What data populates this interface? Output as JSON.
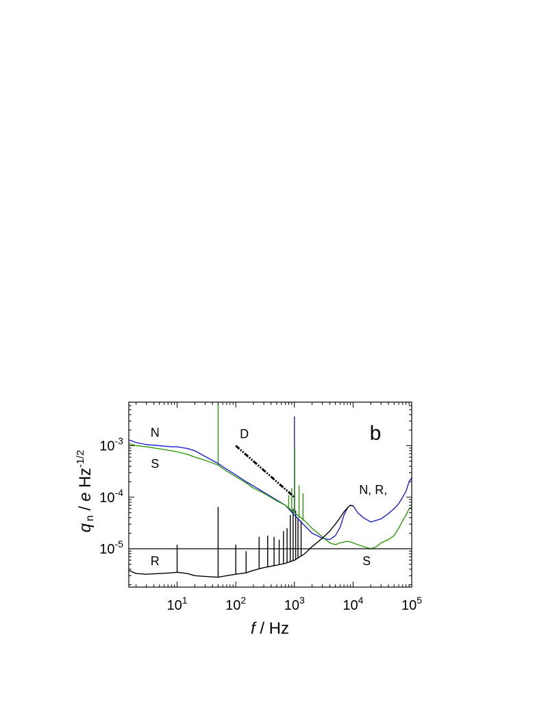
{
  "chart_data": {
    "type": "line",
    "panel_label": "b",
    "xlabel_var": "f",
    "xlabel_unit": " / Hz",
    "ylabel_var": "q",
    "ylabel_sub": "n",
    "ylabel_mid": " / ",
    "ylabel_e": "e",
    "ylabel_unit": " Hz",
    "ylabel_exp": "-1/2",
    "x_scale": "log",
    "y_scale": "log",
    "xlim": [
      1.5,
      100000
    ],
    "ylim": [
      1.8e-06,
      0.007
    ],
    "x_ticks": [
      {
        "base": "10",
        "exp": "1",
        "value": 10
      },
      {
        "base": "10",
        "exp": "2",
        "value": 100
      },
      {
        "base": "10",
        "exp": "3",
        "value": 1000
      },
      {
        "base": "10",
        "exp": "4",
        "value": 10000
      },
      {
        "base": "10",
        "exp": "5",
        "value": 100000
      }
    ],
    "y_ticks": [
      {
        "base": "10",
        "exp": "-5",
        "value": 1e-05
      },
      {
        "base": "10",
        "exp": "-4",
        "value": 0.0001
      },
      {
        "base": "10",
        "exp": "-3",
        "value": 0.001
      }
    ],
    "hline": {
      "y": 1e-05
    },
    "series": [
      {
        "label": "N",
        "color": "#1a1ad6",
        "x": [
          1.5,
          2,
          3,
          5,
          8,
          10,
          15,
          20,
          30,
          50,
          70,
          100,
          150,
          200,
          300,
          500,
          700,
          1000,
          1500,
          2000,
          3000,
          4000,
          5000,
          6000,
          7000,
          8000,
          9000,
          10000,
          12000,
          15000,
          20000,
          30000,
          40000,
          50000,
          60000,
          70000,
          80000,
          90000,
          100000
        ],
        "y": [
          0.0013,
          0.00115,
          0.00105,
          0.001,
          0.00095,
          0.00095,
          0.00088,
          0.0008,
          0.00062,
          0.00045,
          0.00035,
          0.00027,
          0.0002,
          0.000165,
          0.000125,
          8.8e-05,
          7e-05,
          4.5e-05,
          2.8e-05,
          2e-05,
          1.6e-05,
          1.5e-05,
          1.8e-05,
          2.6e-05,
          4.5e-05,
          6.2e-05,
          7e-05,
          6.8e-05,
          5e-05,
          4e-05,
          3.3e-05,
          3.8e-05,
          4.8e-05,
          6e-05,
          7.5e-05,
          0.0001,
          0.00013,
          0.0002,
          0.00024
        ]
      },
      {
        "label": "S",
        "color": "#2a9a0a",
        "x": [
          1.5,
          2,
          3,
          5,
          8,
          10,
          15,
          20,
          30,
          50,
          70,
          100,
          150,
          200,
          300,
          500,
          700,
          1000,
          1500,
          2000,
          3000,
          4000,
          5000,
          6000,
          8000,
          10000,
          12000,
          15000,
          20000,
          25000,
          30000,
          40000,
          50000,
          60000,
          70000,
          80000,
          90000,
          100000
        ],
        "y": [
          0.0011,
          0.001,
          0.00095,
          0.00087,
          0.0008,
          0.00076,
          0.00068,
          0.0006,
          0.00052,
          0.00042,
          0.00032,
          0.00025,
          0.00019,
          0.00015,
          0.00012,
          8.5e-05,
          7e-05,
          5e-05,
          3.5e-05,
          2.5e-05,
          1.7e-05,
          1.3e-05,
          1.2e-05,
          1.3e-05,
          1.4e-05,
          1.3e-05,
          1.2e-05,
          1.1e-05,
          1e-05,
          1.1e-05,
          1.3e-05,
          1.5e-05,
          1.8e-05,
          2.5e-05,
          3.5e-05,
          4.5e-05,
          6e-05,
          6.5e-05
        ]
      },
      {
        "label": "R",
        "color": "#000000",
        "x": [
          1.5,
          2,
          3,
          5,
          8,
          10,
          15,
          20,
          30,
          50,
          70,
          100,
          150,
          200,
          300,
          500,
          700,
          1000,
          1500,
          2000,
          3000,
          4000,
          5000,
          6000,
          7000,
          8000,
          9000,
          10000
        ],
        "y": [
          3.8e-06,
          3.3e-06,
          3.2e-06,
          3.3e-06,
          3.4e-06,
          3.5e-06,
          3.3e-06,
          3e-06,
          2.9e-06,
          2.8e-06,
          3e-06,
          3.2e-06,
          3.4e-06,
          3.8e-06,
          4.3e-06,
          4.8e-06,
          5.2e-06,
          6e-06,
          8e-06,
          1.1e-05,
          1.6e-05,
          2.2e-05,
          3e-05,
          4e-05,
          5.2e-05,
          6.2e-05,
          7e-05,
          6.8e-05
        ]
      },
      {
        "label": "D",
        "color": "#000000",
        "dashed": true,
        "x": [
          100,
          1000
        ],
        "y": [
          0.001,
          0.0001
        ]
      }
    ],
    "spikes": [
      {
        "x": 10,
        "y": 1.2e-05,
        "base": 3.4e-06,
        "color": "#000000"
      },
      {
        "x": 50,
        "y": 6.5e-05,
        "base": 2.8e-06,
        "color": "#000000"
      },
      {
        "x": 100,
        "y": 1.2e-05,
        "base": 3.2e-06,
        "color": "#000000"
      },
      {
        "x": 150,
        "y": 9e-06,
        "base": 3.4e-06,
        "color": "#000000"
      },
      {
        "x": 250,
        "y": 1.7e-05,
        "base": 4e-06,
        "color": "#000000"
      },
      {
        "x": 350,
        "y": 1.8e-05,
        "base": 4.4e-06,
        "color": "#000000"
      },
      {
        "x": 450,
        "y": 1.7e-05,
        "base": 4.7e-06,
        "color": "#000000"
      },
      {
        "x": 550,
        "y": 1.5e-05,
        "base": 4.9e-06,
        "color": "#000000"
      },
      {
        "x": 650,
        "y": 2.2e-05,
        "base": 5.1e-06,
        "color": "#000000"
      },
      {
        "x": 750,
        "y": 2.5e-05,
        "base": 5.3e-06,
        "color": "#000000"
      },
      {
        "x": 850,
        "y": 4.5e-05,
        "base": 5.5e-06,
        "color": "#000000"
      },
      {
        "x": 950,
        "y": 6e-05,
        "base": 5.8e-06,
        "color": "#000000"
      },
      {
        "x": 1050,
        "y": 5.5e-05,
        "base": 6e-06,
        "color": "#000000"
      },
      {
        "x": 1150,
        "y": 4e-05,
        "base": 6.5e-06,
        "color": "#000000"
      },
      {
        "x": 1300,
        "y": 3.5e-05,
        "base": 7e-06,
        "color": "#000000"
      },
      {
        "x": 50,
        "y": 0.0065,
        "base": 0.00042,
        "color": "#2a9a0a"
      },
      {
        "x": 1000,
        "y": 0.0037,
        "base": 5e-05,
        "color": "#1a1ad6"
      },
      {
        "x": 1010,
        "y": 0.0009,
        "base": 5e-05,
        "color": "#2a9a0a"
      },
      {
        "x": 900,
        "y": 0.00015,
        "base": 5e-05,
        "color": "#2a9a0a"
      },
      {
        "x": 1200,
        "y": 0.00017,
        "base": 4e-05,
        "color": "#2a9a0a"
      },
      {
        "x": 1400,
        "y": 0.00012,
        "base": 3.5e-05,
        "color": "#2a9a0a"
      },
      {
        "x": 800,
        "y": 0.00011,
        "base": 6e-05,
        "color": "#2a9a0a"
      }
    ],
    "annotations": [
      {
        "text": "N",
        "x": 4.2,
        "y": 0.0015
      },
      {
        "text": "S",
        "x": 4.2,
        "y": 0.00037
      },
      {
        "text": "D",
        "x": 140,
        "y": 0.0014
      },
      {
        "text": "N, R,",
        "x": 22000,
        "y": 0.000115
      },
      {
        "text": "S",
        "x": 17000,
        "y": 4.8e-06
      },
      {
        "text": "R",
        "x": 4.2,
        "y": 4.8e-06
      }
    ]
  }
}
